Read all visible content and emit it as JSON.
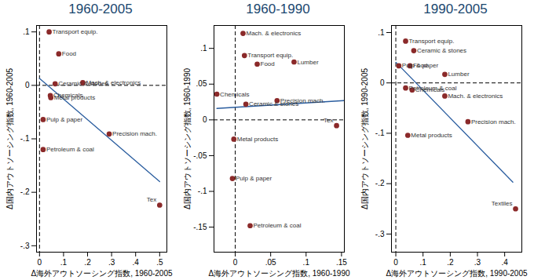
{
  "chart_data": [
    {
      "type": "scatter",
      "title": "1960-2005",
      "x_label": "Δ海外アウトソーシング指数, 1960-2005",
      "y_label": "Δ国内アウトソーシング指数, 1960-2005",
      "labels": [
        "Transport equip.",
        "Food",
        "Ceramic & stones",
        "Mach. & electronics",
        "Chemicals",
        "Metal products",
        "Pulp & paper",
        "Precision mach.",
        "Petroleum & coal",
        "Tex"
      ],
      "x": [
        0.04,
        0.08,
        0.065,
        0.18,
        0.045,
        0.047,
        0.015,
        0.29,
        0.015,
        0.5
      ],
      "y": [
        0.1,
        0.059,
        0.003,
        0.005,
        -0.019,
        -0.023,
        -0.064,
        -0.091,
        -0.12,
        -0.224
      ],
      "color": "#8b2a2a",
      "marker": "circle",
      "xlim": [
        -0.0125,
        0.53
      ],
      "ylim": [
        -0.312,
        0.112
      ],
      "xticks": [
        0,
        {
          "value": 0.1,
          "label": ".1"
        },
        {
          "value": 0.2,
          "label": ".2"
        },
        {
          "value": 0.3,
          "label": ".3"
        },
        {
          "value": 0.4,
          "label": ".4"
        },
        {
          "value": 0.5,
          "label": ".5"
        }
      ],
      "yticks": [
        {
          "value": -0.3,
          "label": "-.3"
        },
        {
          "value": -0.2,
          "label": "-.2"
        },
        {
          "value": -0.1,
          "label": "-.1"
        },
        0,
        {
          "value": 0.1,
          "label": ".1"
        }
      ],
      "fit_line": {
        "x": [
          0,
          0.5
        ],
        "y": [
          0.013,
          -0.18
        ],
        "color": "#2a5d9f"
      },
      "reference_lines": [
        {
          "axis": "x",
          "value": 0
        },
        {
          "axis": "y",
          "value": 0
        }
      ]
    },
    {
      "type": "scatter",
      "title": "1960-1990",
      "x_label": "Δ海外アウトソーシング指数, 1960-1990",
      "y_label": "Δ国内アウトソーシング指数, 1960-1990",
      "labels": [
        "Mach. & electronics",
        "Transport equip.",
        "Food",
        "Lumber",
        "Chemicals",
        "Ceramic & stones",
        "Precision mach.",
        "Tex",
        "Metal products",
        "Pulp & paper",
        "Petroleum & coal"
      ],
      "x": [
        0.011,
        0.013,
        0.031,
        0.083,
        -0.026,
        0.015,
        0.059,
        0.143,
        -0.002,
        -0.004,
        0.021
      ],
      "y": [
        0.121,
        0.09,
        0.078,
        0.081,
        0.036,
        0.022,
        0.027,
        -0.008,
        -0.027,
        -0.082,
        -0.148
      ],
      "color": "#8b2a2a",
      "marker": "circle",
      "xlim": [
        -0.03,
        0.154
      ],
      "ylim": [
        -0.185,
        0.132
      ],
      "xticks": [
        0,
        {
          "value": 0.05,
          "label": ".05"
        },
        {
          "value": 0.1,
          "label": ".1"
        },
        {
          "value": 0.15,
          "label": ".15"
        }
      ],
      "yticks": [
        {
          "value": -0.15,
          "label": "-.15"
        },
        {
          "value": -0.1,
          "label": "-.1"
        },
        {
          "value": -0.05,
          "label": "-.05"
        },
        0,
        {
          "value": 0.05,
          "label": ".05"
        },
        {
          "value": 0.1,
          "label": ".1"
        }
      ],
      "fit_line": {
        "x": [
          -0.026,
          0.154
        ],
        "y": [
          0.016,
          0.027
        ],
        "color": "#2a5d9f"
      },
      "reference_lines": [
        {
          "axis": "x",
          "value": 0
        },
        {
          "axis": "y",
          "value": 0
        }
      ]
    },
    {
      "type": "scatter",
      "title": "1990-2005",
      "x_label": "Δ海外アウトソーシング指数, 1990-2005",
      "y_label": "Δ国内アウトソーシング指数, 1990-2005",
      "labels": [
        "Transport equip.",
        "Ceramic & stones",
        "Pulp & paper",
        "Food",
        "Lumber",
        "Petroleum & coal",
        "Chemicals",
        "Mach. & electronics",
        "Precision mach.",
        "Metal products",
        "Textiles"
      ],
      "x": [
        0.036,
        0.066,
        0.011,
        0.052,
        0.18,
        0.036,
        0.06,
        0.18,
        0.265,
        0.044,
        0.44
      ],
      "y": [
        0.083,
        0.064,
        0.034,
        0.034,
        0.017,
        -0.01,
        -0.014,
        -0.026,
        -0.077,
        -0.104,
        -0.25
      ],
      "color": "#8b2a2a",
      "marker": "circle",
      "xlim": [
        -0.016,
        0.463
      ],
      "ylim": [
        -0.336,
        0.114
      ],
      "xticks": [
        0,
        {
          "value": 0.1,
          "label": ".1"
        },
        {
          "value": 0.2,
          "label": ".2"
        },
        {
          "value": 0.3,
          "label": ".3"
        },
        {
          "value": 0.4,
          "label": ".4"
        }
      ],
      "yticks": [
        {
          "value": -0.3,
          "label": "-.3"
        },
        {
          "value": -0.2,
          "label": "-.2"
        },
        {
          "value": -0.1,
          "label": "-.1"
        },
        0,
        {
          "value": 0.1,
          "label": ".1"
        }
      ],
      "fit_line": {
        "x": [
          0,
          0.43
        ],
        "y": [
          0.041,
          -0.197
        ],
        "color": "#2a5d9f"
      },
      "reference_lines": [
        {
          "axis": "x",
          "value": 0
        },
        {
          "axis": "y",
          "value": 0
        }
      ]
    }
  ]
}
